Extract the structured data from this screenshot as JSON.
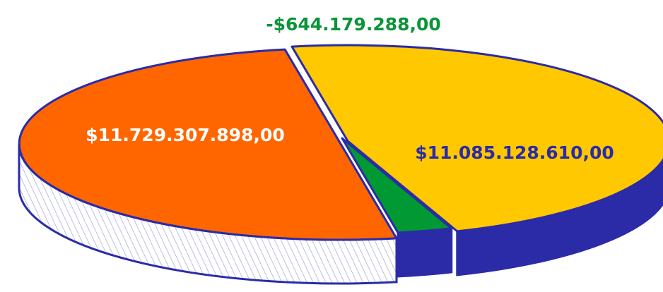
{
  "chart_data": {
    "type": "pie",
    "categories": [
      "Orange",
      "Yellow",
      "Green"
    ],
    "series": [
      {
        "values": [
          11729307898,
          11085128610,
          -644179288
        ],
        "value_labels": [
          "$11.729.307.898,00",
          "$11.085.128.610,00",
          "-$644.179.288,00"
        ],
        "colors": [
          "#ff6600",
          "#ffc800",
          "#009933"
        ]
      }
    ]
  }
}
